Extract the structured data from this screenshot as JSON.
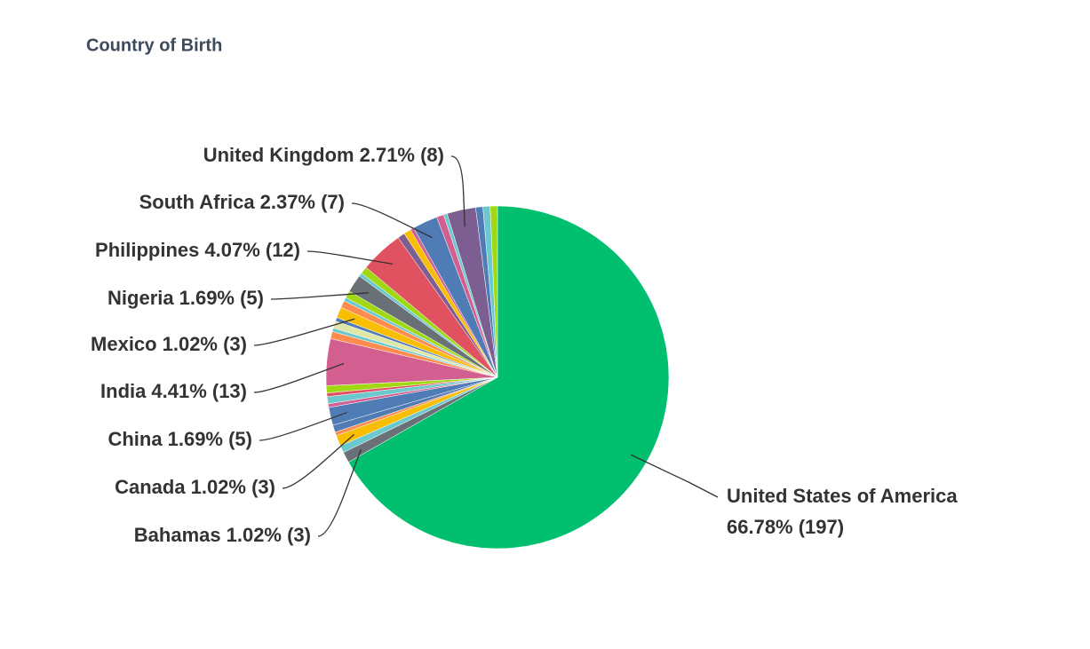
{
  "chart_data": {
    "type": "pie",
    "title": "Country of Birth",
    "categories": [
      "United States of America",
      "Bahamas",
      null,
      "Canada",
      null,
      null,
      "China",
      null,
      null,
      null,
      null,
      "India",
      null,
      null,
      null,
      null,
      "Mexico",
      null,
      null,
      null,
      "Nigeria",
      null,
      null,
      "Philippines",
      null,
      null,
      null,
      "South Africa",
      null,
      null,
      "United Kingdom",
      null,
      null,
      null
    ],
    "values": [
      66.78,
      1.02,
      0.68,
      1.02,
      0.34,
      0.68,
      1.69,
      0.34,
      0.68,
      0.34,
      0.68,
      4.41,
      0.68,
      0.34,
      0.68,
      0.34,
      1.02,
      0.68,
      0.34,
      0.68,
      1.69,
      0.34,
      0.68,
      4.07,
      0.68,
      0.68,
      0.34,
      2.37,
      0.68,
      0.34,
      2.71,
      0.68,
      0.68,
      0.68
    ],
    "value_labels": [
      "66.78% (197)",
      "1.02% (3)",
      null,
      "1.02% (3)",
      null,
      null,
      "1.69% (5)",
      null,
      null,
      null,
      null,
      "4.41% (13)",
      null,
      null,
      null,
      null,
      "1.02% (3)",
      null,
      null,
      null,
      "1.69% (5)",
      null,
      null,
      "4.07% (12)",
      null,
      null,
      null,
      "2.37% (7)",
      null,
      null,
      "2.71% (8)",
      null,
      null,
      null
    ],
    "colors": [
      "#00bf6f",
      "#6a7176",
      "#6bc8cd",
      "#f9be00",
      "#ff8b4f",
      "#507cb6",
      "#507cb6",
      "#d25f90",
      "#6bc8cd",
      "#e05260",
      "#a0d911",
      "#d25f90",
      "#ff8b4f",
      "#6bc8cd",
      "#dee7a8",
      "#507cb6",
      "#f9be00",
      "#ff8b4f",
      "#6bc8cd",
      "#a0d911",
      "#6a7176",
      "#6bc8cd",
      "#a0d911",
      "#e05260",
      "#7d5e90",
      "#f9be00",
      "#d25f90",
      "#507cb6",
      "#d25f90",
      "#6bc8cd",
      "#7d5e90",
      "#507cb6",
      "#6bc8cd",
      "#a0d911"
    ]
  }
}
